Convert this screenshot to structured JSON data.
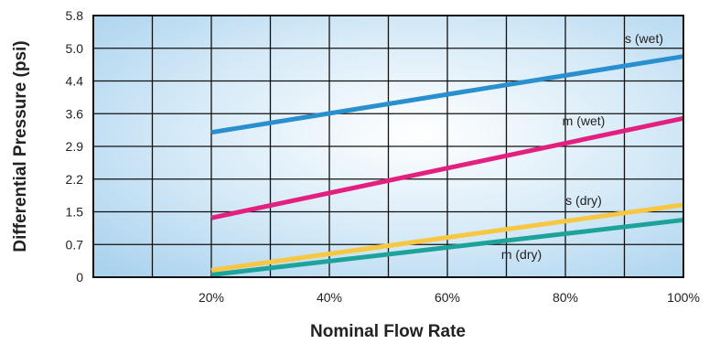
{
  "chart_data": {
    "type": "line",
    "xlabel": "Nominal Flow Rate",
    "ylabel": "Differential Pressure (psi)",
    "x_ticks": [
      "20%",
      "40%",
      "60%",
      "80%",
      "100%"
    ],
    "y_ticks": [
      "0",
      "0.7",
      "1.5",
      "2.2",
      "2.9",
      "3.6",
      "4.4",
      "5.0",
      "5.8"
    ],
    "xlim": [
      0,
      100
    ],
    "ylim": [
      0,
      5.8
    ],
    "grid": true,
    "series": [
      {
        "name": "s (wet)",
        "color": "#2a8fcf",
        "x": [
          20,
          100
        ],
        "y": [
          3.2,
          4.85
        ]
      },
      {
        "name": "m (wet)",
        "color": "#e3207f",
        "x": [
          20,
          100
        ],
        "y": [
          1.35,
          3.5
        ]
      },
      {
        "name": "s (dry)",
        "color": "#f7c742",
        "x": [
          20,
          100
        ],
        "y": [
          0.15,
          1.65
        ]
      },
      {
        "name": "m (dry)",
        "color": "#1ea39a",
        "x": [
          20,
          100
        ],
        "y": [
          0.05,
          1.3
        ]
      }
    ]
  }
}
